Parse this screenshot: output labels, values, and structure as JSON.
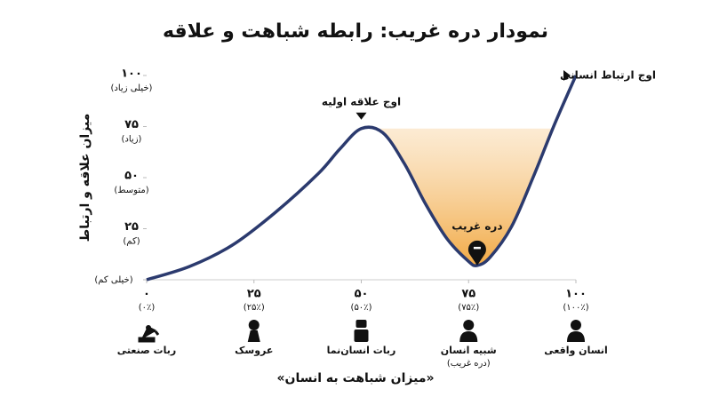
{
  "chart_data": {
    "type": "line",
    "title": "نمودار دره غریب: رابطه شباهت و علاقه",
    "ylabel": "میزان علاقه و ارتباط",
    "xlabel": "«میزان شباهت به انسان»",
    "xlim": [
      0,
      100
    ],
    "ylim": [
      0,
      100
    ],
    "yticks": [
      {
        "value": 0,
        "label": "(خیلی کم)"
      },
      {
        "value": 25,
        "label": "۲۵",
        "sublabel": "(کم)"
      },
      {
        "value": 50,
        "label": "۵۰",
        "sublabel": "(متوسط)"
      },
      {
        "value": 75,
        "label": "۷۵",
        "sublabel": "(زیاد)"
      },
      {
        "value": 100,
        "label": "۱۰۰",
        "sublabel": "(خیلی زیاد)"
      }
    ],
    "xticks": [
      {
        "value": 0,
        "label": "۰",
        "sublabel": "(۰٪)"
      },
      {
        "value": 25,
        "label": "۲۵",
        "sublabel": "(۲۵٪)"
      },
      {
        "value": 50,
        "label": "۵۰",
        "sublabel": "(۵۰٪)"
      },
      {
        "value": 75,
        "label": "۷۵",
        "sublabel": "(۷۵٪)"
      },
      {
        "value": 100,
        "label": "۱۰۰",
        "sublabel": "(۱۰۰٪)"
      }
    ],
    "categories": [
      "ربات صنعتی",
      "عروسک",
      "ربات انسان‌نما",
      "شبیه انسان",
      "انسان واقعی"
    ],
    "category_notes": [
      null,
      null,
      null,
      "(دره غریب)",
      null
    ],
    "series": [
      {
        "color": "#2b3a6e",
        "x": [
          0,
          10,
          20,
          30,
          40,
          45,
          50,
          55,
          60,
          65,
          70,
          75,
          77,
          80,
          85,
          90,
          95,
          100
        ],
        "values": [
          0,
          6.5,
          17,
          33,
          52,
          64,
          74,
          72,
          57,
          37,
          20,
          9,
          7,
          11,
          26,
          50,
          76,
          100
        ]
      }
    ],
    "peak_label": "اوج علاقه اولیه",
    "valley_label": "دره غریب",
    "top_label": "اوج ارتباط انسانی",
    "valley_color": "#f0a030"
  }
}
